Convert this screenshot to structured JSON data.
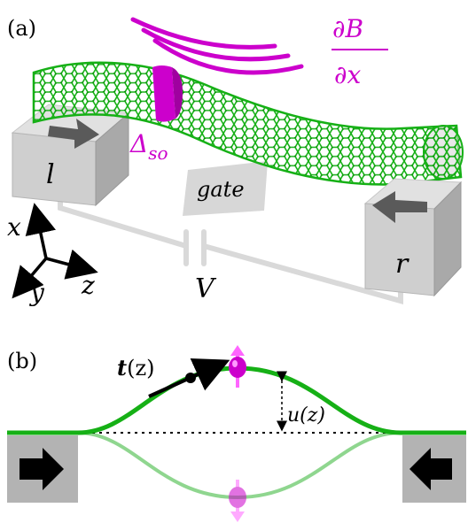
{
  "panel_a": {
    "label": "(a)",
    "derivative_num": "∂B",
    "derivative_den": "∂x",
    "delta_label": "Δ",
    "delta_sub": "so",
    "lead_left": "l",
    "lead_right": "r",
    "gate": "gate",
    "voltage": "V",
    "axis_x": "x",
    "axis_y": "y",
    "axis_z": "z"
  },
  "panel_b": {
    "label": "(b)",
    "tangent_vec": "t",
    "tangent_arg": "(z)",
    "displacement": "u(z)"
  },
  "colors": {
    "tube": "#16b016",
    "tube_light": "#8fd68f",
    "magenta": "#cc00cc",
    "magenta_light": "#e77ee7",
    "lead_gray": "#b3b3b3",
    "wire_gray": "#d9d9d9"
  }
}
